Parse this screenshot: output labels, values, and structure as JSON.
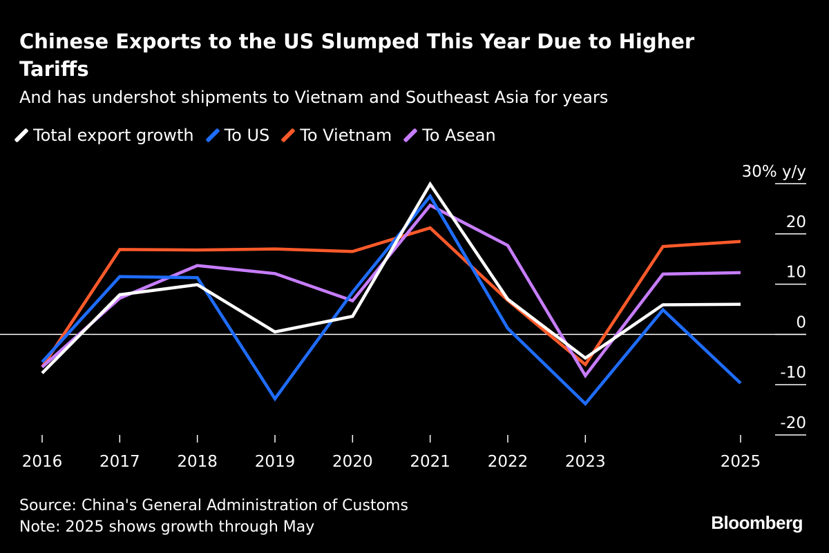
{
  "header": {
    "title": "Chinese Exports to the US Slumped This Year Due to Higher Tariffs",
    "subtitle": "And has undershot shipments to Vietnam and Southeast Asia for years"
  },
  "footer": {
    "source": "Source: China's General Administration of Customs",
    "note": "Note: 2025 shows growth through May",
    "brand": "Bloomberg"
  },
  "chart_data": {
    "type": "line",
    "title": "Chinese Exports to the US Slumped This Year Due to Higher Tariffs",
    "subtitle": "And has undershot shipments to Vietnam and Southeast Asia for years",
    "x": [
      2016,
      2017,
      2018,
      2019,
      2020,
      2021,
      2022,
      2023,
      2024,
      2025
    ],
    "x_tick_labels": [
      {
        "x": 2016,
        "label": "2016"
      },
      {
        "x": 2017,
        "label": "2017"
      },
      {
        "x": 2018,
        "label": "2018"
      },
      {
        "x": 2019,
        "label": "2019"
      },
      {
        "x": 2020,
        "label": "2020"
      },
      {
        "x": 2021,
        "label": "2021"
      },
      {
        "x": 2022,
        "label": "2022"
      },
      {
        "x": 2023,
        "label": "2023"
      },
      {
        "x": 2025,
        "label": "2025"
      }
    ],
    "xlim": [
      2016,
      2025
    ],
    "ylim": [
      -20,
      30
    ],
    "y_ticks": [
      {
        "value": 30,
        "label": "30% y/y"
      },
      {
        "value": 20,
        "label": "20"
      },
      {
        "value": 10,
        "label": "10"
      },
      {
        "value": 0,
        "label": "0"
      },
      {
        "value": -10,
        "label": "-10"
      },
      {
        "value": -20,
        "label": "-20"
      }
    ],
    "zero_line": true,
    "legend_position": "top-left",
    "series": [
      {
        "name": "Total export growth",
        "color": "#ffffff",
        "values": [
          -7.7,
          7.9,
          9.9,
          0.5,
          3.6,
          29.9,
          7.0,
          -4.7,
          5.9,
          6.0
        ]
      },
      {
        "name": "To US",
        "color": "#1f6dff",
        "values": [
          -5.5,
          11.5,
          11.3,
          -12.8,
          8.4,
          27.5,
          1.2,
          -13.8,
          4.9,
          -9.7
        ]
      },
      {
        "name": "To Vietnam",
        "color": "#ff5a2b",
        "values": [
          -6.5,
          16.9,
          16.8,
          17.0,
          16.5,
          21.2,
          6.8,
          -6.0,
          17.5,
          18.5
        ]
      },
      {
        "name": "To Asean",
        "color": "#c77dff",
        "values": [
          -6.5,
          7.2,
          13.7,
          12.1,
          6.7,
          25.7,
          17.7,
          -8.2,
          12.0,
          12.3
        ]
      }
    ]
  }
}
